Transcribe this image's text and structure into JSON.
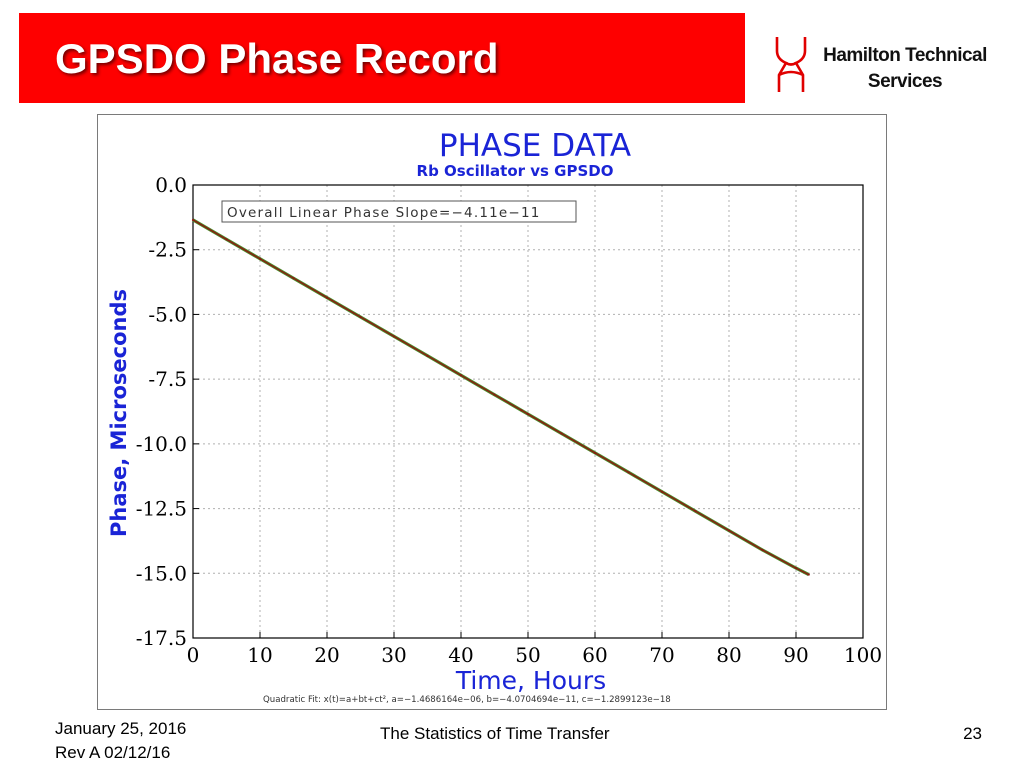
{
  "slide": {
    "title": "GPSDO Phase Record",
    "company_line1": "Hamilton Technical",
    "company_line2": "Services",
    "logo_icon": "hts-logo-icon",
    "date": "January 25, 2016",
    "revision": "Rev A 02/12/16",
    "footer_title": "The Statistics of Time Transfer",
    "page_number": "23",
    "accent_color": "#fe0000"
  },
  "chart_data": {
    "type": "line",
    "title": "PHASE DATA",
    "subtitle": "Rb Oscillator vs GPSDO",
    "xlabel": "Time, Hours",
    "ylabel": "Phase, Microseconds",
    "xlim": [
      0,
      100
    ],
    "ylim": [
      -17.5,
      0.0
    ],
    "x_ticks": [
      0,
      10,
      20,
      30,
      40,
      50,
      60,
      70,
      80,
      90,
      100
    ],
    "x_tick_labels": [
      "0",
      "10",
      "20",
      "30",
      "40",
      "50",
      "60",
      "70",
      "80",
      "90",
      "100"
    ],
    "y_ticks": [
      0.0,
      -2.5,
      -5.0,
      -7.5,
      -10.0,
      -12.5,
      -15.0,
      -17.5
    ],
    "y_tick_labels": [
      "0.0",
      "-2.5",
      "-5.0",
      "-7.5",
      "-10.0",
      "-12.5",
      "-15.0",
      "-17.5"
    ],
    "grid": true,
    "annotation": "Overall Linear Phase Slope=−4.11e−11",
    "fit_note": "Quadratic Fit: x(t)=a+bt+ct², a=−1.4686164e−06, b=−4.0704694e−11, c=−1.2899123e−18",
    "colors": {
      "title": "#1a24d6",
      "axis": "#000000",
      "grid": "#b0b0b0",
      "series": "#8b1a10",
      "fit": "#4a8a2a"
    },
    "series": [
      {
        "name": "Phase",
        "x": [
          0,
          5,
          10,
          15,
          20,
          25,
          30,
          35,
          40,
          45,
          49,
          50,
          55,
          60,
          65,
          70,
          75,
          80,
          85,
          90,
          91.9
        ],
        "y": [
          -1.35,
          -2.1,
          -2.85,
          -3.6,
          -4.35,
          -5.1,
          -5.85,
          -6.6,
          -7.35,
          -8.1,
          -8.7,
          -8.85,
          -9.6,
          -10.35,
          -11.1,
          -11.85,
          -12.6,
          -13.35,
          -14.1,
          -14.8,
          -15.05
        ]
      }
    ]
  }
}
